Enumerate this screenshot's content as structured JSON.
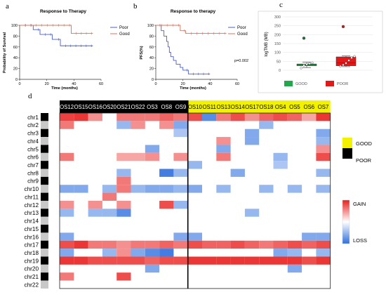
{
  "panels": {
    "a": "a",
    "b": "b",
    "c": "c",
    "d": "d"
  },
  "colors": {
    "poor": "#4a5fc8",
    "good": "#d9735a",
    "gain": "#e8201e",
    "loss": "#2f6fde",
    "good_box": "#f2f200",
    "poor_box": "#000000",
    "boxplot_good": "#22a84a",
    "boxplot_poor": "#e01a1a"
  },
  "chart_data": [
    {
      "type": "line",
      "panel": "a",
      "title": "Response to Therapy",
      "xlabel": "Time (months)",
      "ylabel": "Probability of Survival",
      "xlim": [
        0,
        60
      ],
      "ylim": [
        0,
        100
      ],
      "xticks": [
        "0",
        "20",
        "40",
        "60"
      ],
      "yticks": [
        "0",
        "20",
        "40",
        "60",
        "80",
        "100"
      ],
      "legend": "top-right",
      "series": [
        {
          "name": "Poor",
          "color": "#4a5fc8",
          "steps": [
            [
              0,
              100
            ],
            [
              10,
              100
            ],
            [
              10,
              92
            ],
            [
              15,
              92
            ],
            [
              15,
              83
            ],
            [
              24,
              83
            ],
            [
              24,
              74
            ],
            [
              30,
              74
            ],
            [
              30,
              62
            ],
            [
              54,
              62
            ]
          ]
        },
        {
          "name": "Good",
          "color": "#d9735a",
          "steps": [
            [
              0,
              100
            ],
            [
              38,
              100
            ],
            [
              38,
              85
            ],
            [
              54,
              85
            ]
          ]
        }
      ]
    },
    {
      "type": "line",
      "panel": "b",
      "title": "Response to therapy",
      "xlabel": "Time (months)",
      "ylabel": "PFS(%)",
      "xlim": [
        0,
        60
      ],
      "ylim": [
        0,
        100
      ],
      "xticks": [
        "0",
        "20",
        "40",
        "60"
      ],
      "yticks": [
        "0",
        "20",
        "40",
        "60",
        "80",
        "100"
      ],
      "annotation": "p=0.002",
      "legend": "top-right",
      "series": [
        {
          "name": "Poor",
          "color": "#4a5fc8",
          "steps": [
            [
              0,
              100
            ],
            [
              4,
              100
            ],
            [
              4,
              90
            ],
            [
              6,
              90
            ],
            [
              6,
              80
            ],
            [
              8,
              80
            ],
            [
              8,
              70
            ],
            [
              9,
              70
            ],
            [
              9,
              60
            ],
            [
              10,
              60
            ],
            [
              10,
              50
            ],
            [
              11,
              50
            ],
            [
              11,
              42
            ],
            [
              13,
              42
            ],
            [
              13,
              35
            ],
            [
              15,
              35
            ],
            [
              15,
              28
            ],
            [
              18,
              28
            ],
            [
              18,
              22
            ],
            [
              20,
              22
            ],
            [
              20,
              17
            ],
            [
              24,
              17
            ],
            [
              24,
              10
            ],
            [
              40,
              10
            ]
          ]
        },
        {
          "name": "Good",
          "color": "#d9735a",
          "steps": [
            [
              0,
              100
            ],
            [
              18,
              100
            ],
            [
              18,
              90
            ],
            [
              22,
              90
            ],
            [
              22,
              85
            ],
            [
              52,
              85
            ]
          ]
        }
      ]
    },
    {
      "type": "box",
      "panel": "c",
      "ylabel": "logTMB (MB)",
      "ylim": [
        0,
        300
      ],
      "yticks": [
        "0",
        "50",
        "100",
        "150",
        "200",
        "250",
        "300"
      ],
      "categories": [
        "GOOD",
        "POOR"
      ],
      "groups": [
        {
          "name": "GOOD",
          "q1": 25,
          "median": 32,
          "q3": 35,
          "whisker_low": 15,
          "whisker_high": 45,
          "outliers": [
            180
          ],
          "points": [
            12,
            28,
            33,
            38,
            42
          ]
        },
        {
          "name": "POOR",
          "q1": 25,
          "median": 42,
          "q3": 75,
          "whisker_low": 20,
          "whisker_high": 80,
          "outliers": [
            245
          ],
          "points": [
            22,
            30,
            40,
            55,
            70,
            78
          ]
        }
      ]
    },
    {
      "type": "heatmap",
      "panel": "d",
      "columns": [
        "OS12",
        "OS15",
        "OS16",
        "OS20",
        "OS21",
        "OS22",
        "OS3",
        "OS8",
        "OS9",
        "OS10",
        "OS11",
        "OS13",
        "OS14",
        "OS17",
        "OS18",
        "OS4",
        "OS5",
        "OS6",
        "OS7"
      ],
      "column_groups": [
        "POOR",
        "POOR",
        "POOR",
        "POOR",
        "POOR",
        "POOR",
        "POOR",
        "POOR",
        "POOR",
        "GOOD",
        "GOOD",
        "GOOD",
        "GOOD",
        "GOOD",
        "GOOD",
        "GOOD",
        "GOOD",
        "GOOD",
        "GOOD"
      ],
      "rows": [
        "chr1",
        "chr2",
        "chr3",
        "chr4",
        "chr5",
        "chr6",
        "chr7",
        "chr8",
        "chr9",
        "chr10",
        "chr11",
        "chr12",
        "chr13",
        "chr14",
        "chr15",
        "chr16",
        "chr17",
        "chr18",
        "chr19",
        "chr20",
        "chr21",
        "chr22"
      ],
      "legend_groups": [
        "GOOD",
        "POOR"
      ],
      "legend_scale": [
        "GAIN",
        "LOSS"
      ],
      "values": [
        [
          0.85,
          0.9,
          0.5,
          0,
          0.6,
          0.6,
          0.6,
          0.7,
          0.6,
          0.8,
          -0.8,
          0.6,
          0.8,
          0.5,
          0.7,
          0.8,
          0.7,
          0.4,
          0.9
        ],
        [
          0.6,
          0,
          0,
          0,
          -0.5,
          0.5,
          0,
          0.5,
          -0.6,
          0,
          0,
          0,
          0,
          0,
          -0.5,
          0,
          0,
          0,
          0
        ],
        [
          0,
          0,
          0,
          0,
          0,
          0,
          0,
          0,
          -0.4,
          0,
          0,
          0,
          0,
          -0.6,
          0,
          0,
          0,
          0,
          -0.6
        ],
        [
          0,
          0,
          0,
          0,
          0,
          0,
          0,
          0,
          0,
          0,
          0,
          0.5,
          0,
          -0.6,
          0,
          0,
          0,
          0,
          -0.5
        ],
        [
          0,
          0,
          0,
          0,
          0,
          0,
          -0.6,
          0,
          0,
          0,
          0,
          -0.6,
          0,
          0,
          0,
          0,
          0,
          0,
          0.5
        ],
        [
          0.6,
          0,
          0,
          0,
          0.4,
          0.4,
          0.5,
          0,
          0.5,
          0,
          0,
          0.6,
          0,
          0,
          0,
          -0.5,
          0,
          0,
          0.8
        ],
        [
          0,
          0,
          0,
          0,
          0,
          0,
          0,
          0,
          0,
          -0.5,
          0,
          0,
          0,
          0,
          0,
          -0.4,
          0,
          0,
          0
        ],
        [
          0,
          0,
          0,
          0,
          -0.5,
          0,
          0,
          -0.9,
          -0.5,
          0,
          0,
          0,
          -0.6,
          0,
          0,
          0,
          0,
          0,
          -0.5
        ],
        [
          0,
          0,
          0,
          0,
          0.6,
          0,
          0,
          0,
          0,
          0,
          0,
          0,
          0,
          0,
          0,
          0,
          0,
          0,
          0
        ],
        [
          -0.6,
          -0.6,
          0,
          -0.5,
          0.6,
          -0.5,
          -0.6,
          -0.6,
          -0.5,
          -0.6,
          0,
          -0.5,
          0,
          0,
          -0.5,
          0,
          -0.5,
          0,
          -0.5
        ],
        [
          0,
          0,
          0,
          0.6,
          0,
          0,
          0,
          0,
          0,
          0,
          0,
          0,
          0,
          0,
          0,
          0,
          0,
          0,
          0
        ],
        [
          0.5,
          0,
          0.5,
          0,
          0.5,
          0,
          0,
          0.8,
          -0.5,
          0,
          0,
          0,
          0,
          0,
          0,
          0,
          0,
          0,
          0
        ],
        [
          -0.5,
          0,
          -0.5,
          -0.5,
          -0.8,
          0,
          0,
          0,
          0,
          0,
          0,
          0,
          0,
          -0.5,
          0,
          0,
          0,
          0,
          0
        ],
        [
          0,
          0,
          0,
          0,
          0,
          0,
          0,
          0,
          0,
          0,
          0,
          0,
          0,
          0,
          0,
          0,
          0,
          0,
          0
        ],
        [
          0,
          0,
          0,
          0,
          0,
          0,
          0,
          0,
          0,
          0,
          0,
          0,
          0,
          0,
          0,
          0,
          0,
          0,
          0
        ],
        [
          -0.6,
          0,
          0,
          0,
          0,
          0,
          0,
          0,
          -0.6,
          -0.6,
          0,
          0,
          0,
          0,
          0,
          0,
          0,
          -0.6,
          -0.6
        ],
        [
          0.8,
          0.9,
          0.6,
          0.6,
          0.5,
          0.6,
          0.6,
          0.7,
          0.6,
          0.8,
          0.7,
          0.7,
          0.8,
          0.7,
          0.6,
          0.7,
          0.8,
          0.7,
          0.8
        ],
        [
          -0.6,
          0,
          0,
          -0.5,
          0.5,
          -0.6,
          -0.8,
          -0.9,
          0,
          0,
          0,
          0,
          0,
          0,
          0,
          -0.6,
          -0.5,
          0,
          -0.5
        ],
        [
          0.9,
          0.9,
          0.8,
          0.8,
          0.8,
          0.8,
          0.7,
          0.8,
          0.8,
          0.9,
          0.9,
          0.9,
          0.9,
          0.9,
          0.9,
          0.9,
          0.9,
          0.8,
          0.9
        ],
        [
          0,
          0,
          0,
          0,
          0,
          0,
          -0.6,
          0,
          0,
          0,
          0,
          0,
          0,
          0,
          0,
          0,
          -0.6,
          0,
          0
        ],
        [
          0.6,
          0,
          0,
          0,
          0.8,
          0,
          0,
          0,
          0,
          0,
          0,
          0,
          0,
          0,
          0,
          0,
          0,
          0,
          0
        ],
        [
          0,
          0,
          0,
          0,
          0,
          0,
          0,
          0,
          0,
          0,
          0,
          0,
          0,
          0,
          0,
          0,
          0,
          0,
          0
        ]
      ]
    }
  ]
}
